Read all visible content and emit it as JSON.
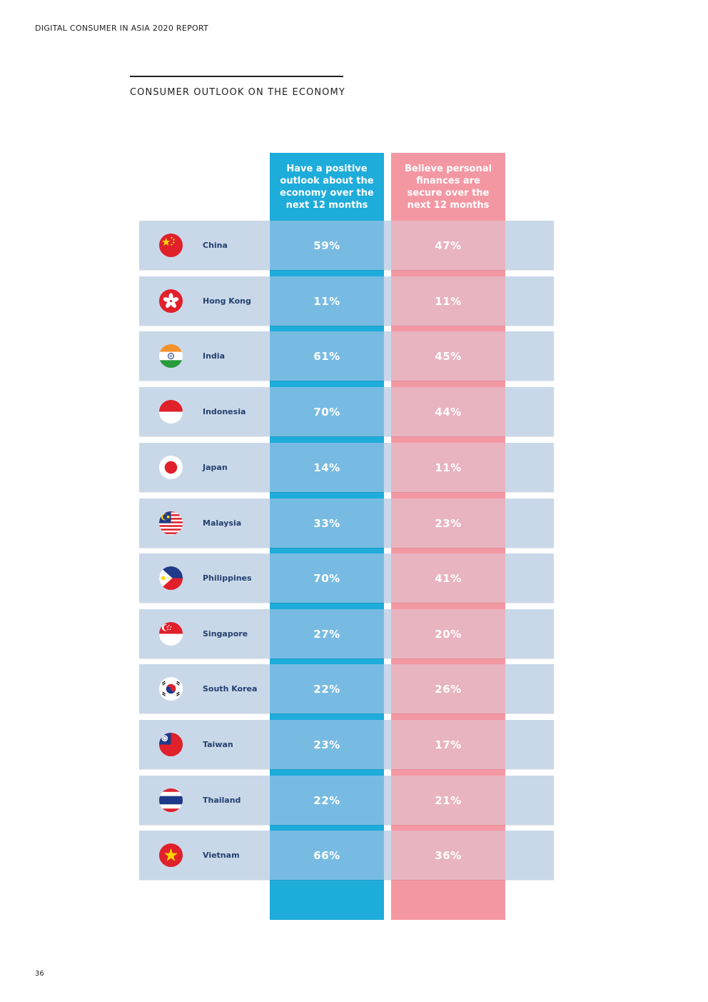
{
  "header": {
    "report_title": "DIGITAL CONSUMER IN ASIA 2020 REPORT"
  },
  "section": {
    "title": "CONSUMER OUTLOOK ON THE ECONOMY"
  },
  "columns": {
    "positive": "Have a positive outlook about the economy over the next 12 months",
    "secure": "Believe personal finances are secure over the next 12 months"
  },
  "rows": [
    {
      "country": "China",
      "flag_icon": "china-flag-icon",
      "positive": "59%",
      "secure": "47%"
    },
    {
      "country": "Hong Kong",
      "flag_icon": "hong-kong-flag-icon",
      "positive": "11%",
      "secure": "11%"
    },
    {
      "country": "India",
      "flag_icon": "india-flag-icon",
      "positive": "61%",
      "secure": "45%"
    },
    {
      "country": "Indonesia",
      "flag_icon": "indonesia-flag-icon",
      "positive": "70%",
      "secure": "44%"
    },
    {
      "country": "Japan",
      "flag_icon": "japan-flag-icon",
      "positive": "14%",
      "secure": "11%"
    },
    {
      "country": "Malaysia",
      "flag_icon": "malaysia-flag-icon",
      "positive": "33%",
      "secure": "23%"
    },
    {
      "country": "Philippines",
      "flag_icon": "philippines-flag-icon",
      "positive": "70%",
      "secure": "41%"
    },
    {
      "country": "Singapore",
      "flag_icon": "singapore-flag-icon",
      "positive": "27%",
      "secure": "20%"
    },
    {
      "country": "South Korea",
      "flag_icon": "south-korea-flag-icon",
      "positive": "22%",
      "secure": "26%"
    },
    {
      "country": "Taiwan",
      "flag_icon": "taiwan-flag-icon",
      "positive": "23%",
      "secure": "17%"
    },
    {
      "country": "Thailand",
      "flag_icon": "thailand-flag-icon",
      "positive": "22%",
      "secure": "21%"
    },
    {
      "country": "Vietnam",
      "flag_icon": "vietnam-flag-icon",
      "positive": "66%",
      "secure": "36%"
    }
  ],
  "footer": {
    "page_number": "36"
  },
  "colors": {
    "blue_column": "#1eacda",
    "blue_cell": "#78bbe2",
    "pink_column": "#f398a3",
    "pink_cell": "#e8b4c0",
    "row_background": "#c9d8e9",
    "country_text": "#23406e"
  }
}
